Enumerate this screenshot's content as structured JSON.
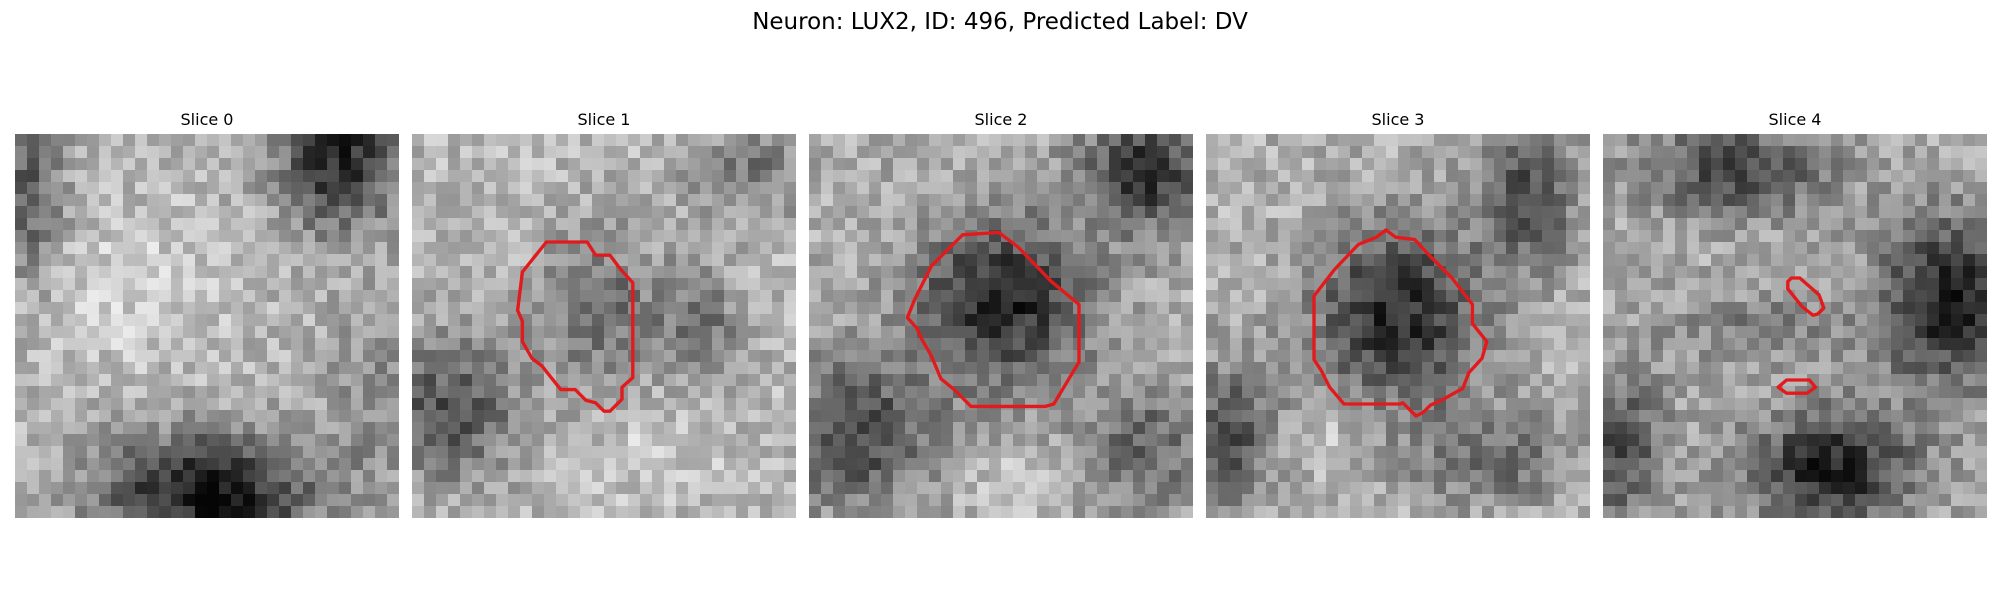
{
  "figure": {
    "suptitle": "Neuron: LUX2, ID: 496, Predicted Label: DV"
  },
  "slices": [
    {
      "title": "Slice 0",
      "has_contour": false
    },
    {
      "title": "Slice 1",
      "has_contour": true
    },
    {
      "title": "Slice 2",
      "has_contour": true
    },
    {
      "title": "Slice 3",
      "has_contour": true
    },
    {
      "title": "Slice 4",
      "has_contour": true
    }
  ],
  "colors": {
    "contour": "#e31a1c",
    "background": "#ffffff"
  }
}
